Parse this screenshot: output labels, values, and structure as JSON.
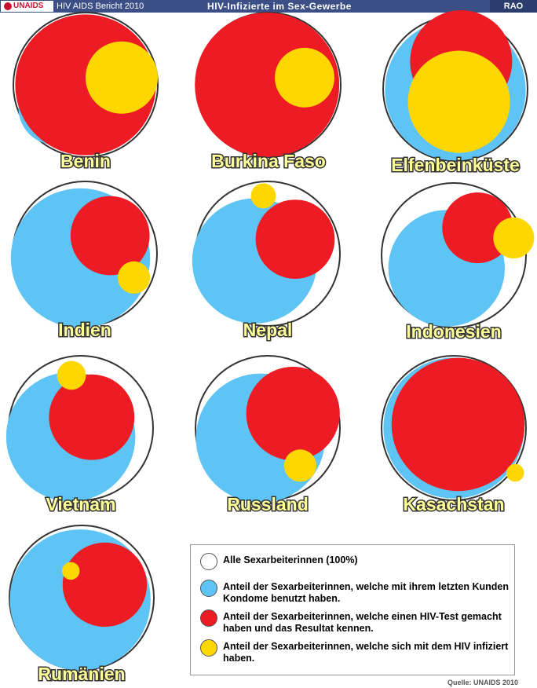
{
  "header": {
    "logo_text": "UNAIDS",
    "report": "HIV AIDS Bericht 2010",
    "title": "HIV-Infizierte im Sex-Gewerbe",
    "right": "RAO"
  },
  "colors": {
    "all": "#ffffff",
    "condom": "#5ec4f5",
    "tested": "#ed1c24",
    "infected": "#ffd700"
  },
  "chart_data": {
    "type": "proportional-circles",
    "unit": "Anteil der Sexarbeiterinnen (%)",
    "countries": [
      {
        "name": "Benin",
        "all": 100,
        "condom": 26,
        "tested": 95,
        "infected": 25
      },
      {
        "name": "Burkina Faso",
        "all": 100,
        "condom": 90,
        "tested": 100,
        "infected": 17
      },
      {
        "name": "Elfenbeinküste",
        "all": 100,
        "condom": 95,
        "tested": 50,
        "infected": 50
      },
      {
        "name": "Indien",
        "all": 100,
        "condom": 93,
        "tested": 30,
        "infected": 5
      },
      {
        "name": "Nepal",
        "all": 100,
        "condom": 75,
        "tested": 30,
        "infected": 3
      },
      {
        "name": "Indonesien",
        "all": 100,
        "condom": 65,
        "tested": 24,
        "infected": 8
      },
      {
        "name": "Vietnam",
        "all": 100,
        "condom": 80,
        "tested": 35,
        "infected": 4
      },
      {
        "name": "Russland",
        "all": 100,
        "condom": 80,
        "tested": 42,
        "infected": 5
      },
      {
        "name": "Kasachstan",
        "all": 100,
        "condom": 95,
        "tested": 85,
        "infected": 1.5
      },
      {
        "name": "Rumänien",
        "all": 100,
        "condom": 95,
        "tested": 34,
        "infected": 1.5
      }
    ]
  },
  "legend": [
    {
      "key": "all",
      "text": "Alle Sexarbeiterinnen (100%)"
    },
    {
      "key": "condom",
      "text": "Anteil der Sexarbeiterinnen, welche mit ihrem letzten Kunden Kondome benutzt haben."
    },
    {
      "key": "tested",
      "text": "Anteil der Sexarbeiterinnen, welche einen HIV-Test gemacht haben und das Resultat kennen."
    },
    {
      "key": "infected",
      "text": "Anteil der Sexarbeiterinnen, welche sich mit dem HIV infiziert haben."
    }
  ],
  "source": "Quelle: UNAIDS 2010"
}
